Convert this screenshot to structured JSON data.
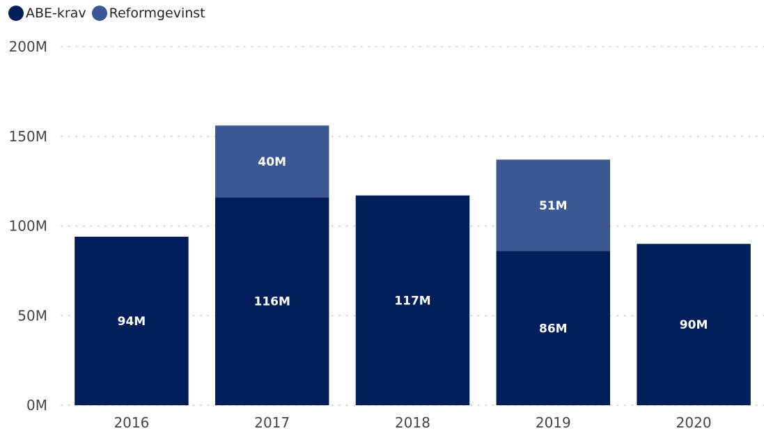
{
  "chart_data": {
    "type": "bar",
    "stacked": true,
    "categories": [
      "2016",
      "2017",
      "2018",
      "2019",
      "2020"
    ],
    "series": [
      {
        "name": "ABE-krav",
        "color": "#001e5a",
        "values": [
          94,
          116,
          117,
          86,
          90
        ],
        "labels": [
          "94M",
          "116M",
          "117M",
          "86M",
          "90M"
        ]
      },
      {
        "name": "Reformgevinst",
        "color": "#3b5894",
        "values": [
          0,
          40,
          0,
          51,
          0
        ],
        "labels": [
          "",
          "40M",
          "",
          "51M",
          ""
        ]
      }
    ],
    "yticks": [
      "0M",
      "50M",
      "100M",
      "150M",
      "200M"
    ],
    "ylim": [
      0,
      200
    ],
    "y_unit": "M",
    "grid": true,
    "legend_position": "top-left"
  }
}
